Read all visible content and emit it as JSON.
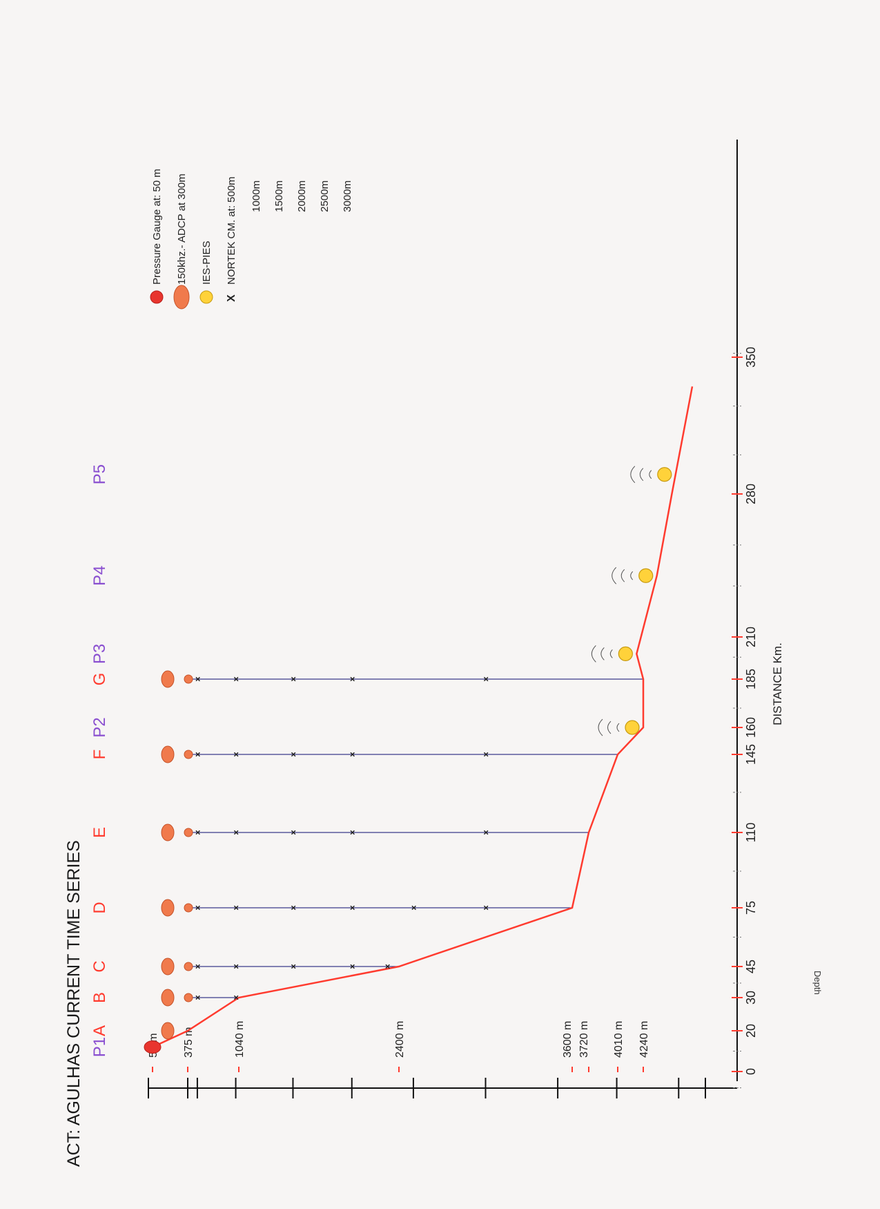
{
  "title": "ACT: AGULHAS CURRENT TIME SERIES",
  "y_axis_title": "Depth",
  "x_axis_title": "DISTANCE  Km.",
  "depth_labels": [
    "50 m",
    "375 m",
    "1040 m",
    "2400 m",
    "3600 m",
    "3720 m",
    "4010 m",
    "4240 m"
  ],
  "chart_data": {
    "type": "diagram",
    "title": "ACT: AGULHAS CURRENT TIME SERIES",
    "xlabel": "DISTANCE  Km.",
    "ylabel": "Depth",
    "x_ticks": [
      0,
      20,
      30,
      45,
      75,
      110,
      145,
      160,
      185,
      210,
      280,
      350
    ],
    "x_range": [
      -10,
      355
    ],
    "depth_range_m": [
      0,
      4600
    ],
    "depth_ticks_m": [
      0,
      375,
      500,
      1000,
      1500,
      2000,
      2500,
      3000,
      3500,
      4000,
      4500,
      4700
    ],
    "depth_marked_m": [
      50,
      375,
      1040,
      2400,
      3600,
      3720,
      4010,
      4240
    ],
    "bathymetry": {
      "color": "#ff3b2f",
      "points": [
        {
          "x": 12,
          "depth": 50
        },
        {
          "x": 20,
          "depth": 375
        },
        {
          "x": 30,
          "depth": 1040
        },
        {
          "x": 45,
          "depth": 2400
        },
        {
          "x": 75,
          "depth": 3600
        },
        {
          "x": 110,
          "depth": 3720
        },
        {
          "x": 145,
          "depth": 4010
        },
        {
          "x": 160,
          "depth": 4240
        },
        {
          "x": 185,
          "depth": 4240
        },
        {
          "x": 200,
          "depth": 4180
        },
        {
          "x": 240,
          "depth": 4340
        },
        {
          "x": 280,
          "depth": 4450
        },
        {
          "x": 335,
          "depth": 4600
        }
      ]
    },
    "moorings": [
      {
        "label": "A",
        "x": 20,
        "color": "#ff3b2f",
        "adcp": true,
        "pressure": false,
        "nortek": []
      },
      {
        "label": "B",
        "x": 30,
        "color": "#ff3b2f",
        "adcp": true,
        "pressure": false,
        "nortek": [
          500,
          1000
        ]
      },
      {
        "label": "C",
        "x": 45,
        "color": "#ff3b2f",
        "adcp": true,
        "pressure": false,
        "nortek": [
          500,
          1000,
          1500,
          2000,
          2300
        ]
      },
      {
        "label": "D",
        "x": 75,
        "color": "#ff3b2f",
        "adcp": true,
        "pressure": false,
        "nortek": [
          500,
          1000,
          1500,
          2000,
          2500,
          3000
        ]
      },
      {
        "label": "E",
        "x": 110,
        "color": "#ff3b2f",
        "adcp": true,
        "pressure": false,
        "nortek": [
          500,
          1000,
          1500,
          2000,
          3000
        ]
      },
      {
        "label": "F",
        "x": 145,
        "color": "#ff3b2f",
        "adcp": true,
        "pressure": false,
        "nortek": [
          500,
          1000,
          1500,
          2000,
          3000
        ]
      },
      {
        "label": "G",
        "x": 185,
        "color": "#ff3b2f",
        "adcp": true,
        "pressure": false,
        "nortek": [
          500,
          1000,
          1500,
          2000,
          3000
        ]
      }
    ],
    "pies": [
      {
        "label": "P1",
        "x": 12,
        "color": "#8a4fd0",
        "pressure_gauge": true
      },
      {
        "label": "P2",
        "x": 160,
        "color": "#8a4fd0"
      },
      {
        "label": "P3",
        "x": 200,
        "color": "#8a4fd0"
      },
      {
        "label": "P4",
        "x": 240,
        "color": "#8a4fd0"
      },
      {
        "label": "P5",
        "x": 290,
        "color": "#8a4fd0"
      }
    ]
  },
  "legend": {
    "pressure_gauge": "Pressure Gauge at: 50 m",
    "adcp": "150khz.- ADCP  at 300m",
    "ies_pies": "IES-PIES",
    "nortek_prefix": "NORTEK CM.  at:  500m",
    "nortek_depths": [
      "1000m",
      "1500m",
      "2000m",
      "2500m",
      "3000m"
    ],
    "x_marker": "X"
  },
  "colors": {
    "bathymetry": "#ff3b2f",
    "mooring_label": "#ff3b2f",
    "pies_label": "#8a4fd0",
    "pies_fill": "#ffd23a",
    "adcp_fill": "#f07a4c",
    "pressure_fill": "#e8352e"
  }
}
